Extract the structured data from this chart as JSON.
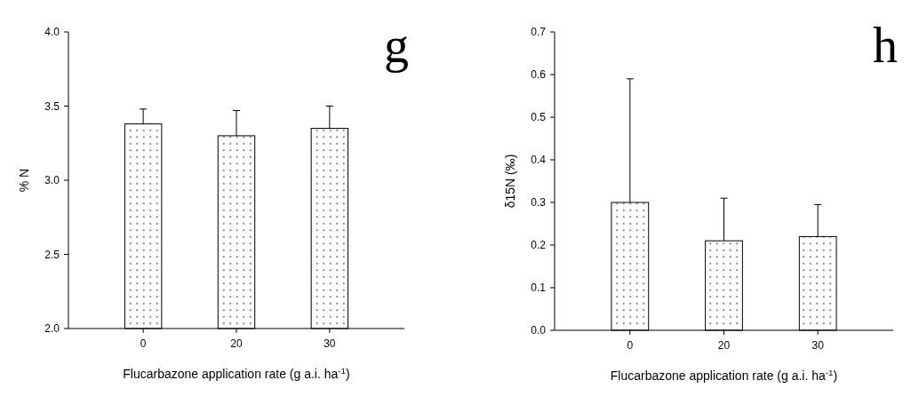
{
  "chart_data": [
    {
      "type": "bar",
      "title": "g",
      "xlabel": "Flucarbazone application rate (g a.i. ha$^{-1}$)",
      "ylabel": "% N",
      "categories": [
        "0",
        "20",
        "30"
      ],
      "values": [
        3.38,
        3.3,
        3.35
      ],
      "errors": [
        [
          3.38,
          3.48
        ],
        [
          3.3,
          3.47
        ],
        [
          3.35,
          3.5
        ]
      ],
      "color": "#000000",
      "ylim": [
        2.0,
        4.0
      ],
      "yticks": [
        {
          "value": 2.0,
          "label": "2.0"
        },
        {
          "value": 2.5,
          "label": "2.5"
        },
        {
          "value": 3.0,
          "label": "3.0"
        },
        {
          "value": 3.5,
          "label": "3.5"
        },
        {
          "value": 4.0,
          "label": "4.0"
        }
      ]
    },
    {
      "type": "bar",
      "title": "h",
      "xlabel": "Flucarbazone application rate (g a.i. ha$^{-1}$)",
      "ylabel": "δ15N (‰)",
      "categories": [
        "0",
        "20",
        "30"
      ],
      "values": [
        0.3,
        0.21,
        0.22
      ],
      "errors": [
        [
          0.3,
          0.59
        ],
        [
          0.21,
          0.31
        ],
        [
          0.22,
          0.295
        ]
      ],
      "color": "#000000",
      "ylim": [
        0.0,
        0.7
      ],
      "yticks": [
        {
          "value": 0.0,
          "label": "0.0"
        },
        {
          "value": 0.1,
          "label": "0.1"
        },
        {
          "value": 0.2,
          "label": "0.2"
        },
        {
          "value": 0.3,
          "label": "0.3"
        },
        {
          "value": 0.4,
          "label": "0.4"
        },
        {
          "value": 0.5,
          "label": "0.5"
        },
        {
          "value": 0.6,
          "label": "0.6"
        },
        {
          "value": 0.7,
          "label": "0.7"
        }
      ]
    }
  ]
}
